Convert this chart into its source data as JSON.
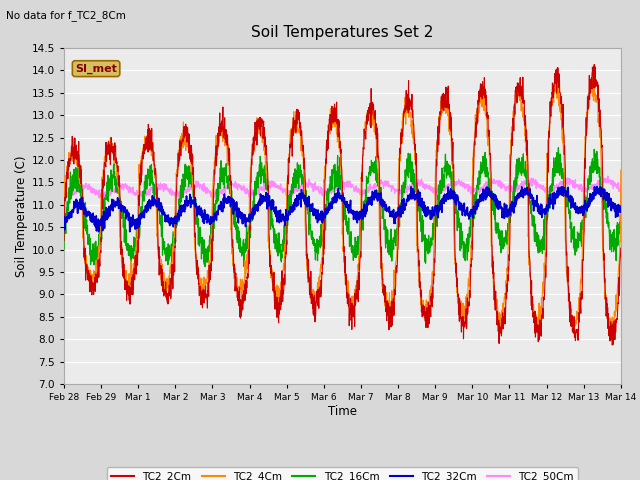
{
  "title": "Soil Temperatures Set 2",
  "ylabel": "Soil Temperature (C)",
  "xlabel": "Time",
  "note": "No data for f_TC2_8Cm",
  "annotation": "SI_met",
  "ylim": [
    7.0,
    14.5
  ],
  "yticks": [
    7.0,
    7.5,
    8.0,
    8.5,
    9.0,
    9.5,
    10.0,
    10.5,
    11.0,
    11.5,
    12.0,
    12.5,
    13.0,
    13.5,
    14.0,
    14.5
  ],
  "xtick_labels": [
    "Feb 28",
    "Feb 29",
    "Mar 1",
    "Mar 2",
    "Mar 3",
    "Mar 4",
    "Mar 5",
    "Mar 6",
    "Mar 7",
    "Mar 8",
    "Mar 9",
    "Mar 10",
    "Mar 11",
    "Mar 12",
    "Mar 13",
    "Mar 14"
  ],
  "colors": {
    "TC2_2Cm": "#cc0000",
    "TC2_4Cm": "#ff8800",
    "TC2_16Cm": "#00aa00",
    "TC2_32Cm": "#0000cc",
    "TC2_50Cm": "#ff88ff"
  },
  "legend_labels": [
    "TC2_2Cm",
    "TC2_4Cm",
    "TC2_16Cm",
    "TC2_32Cm",
    "TC2_50Cm"
  ],
  "fig_bg": "#d8d8d8",
  "plot_bg": "#ebebeb"
}
